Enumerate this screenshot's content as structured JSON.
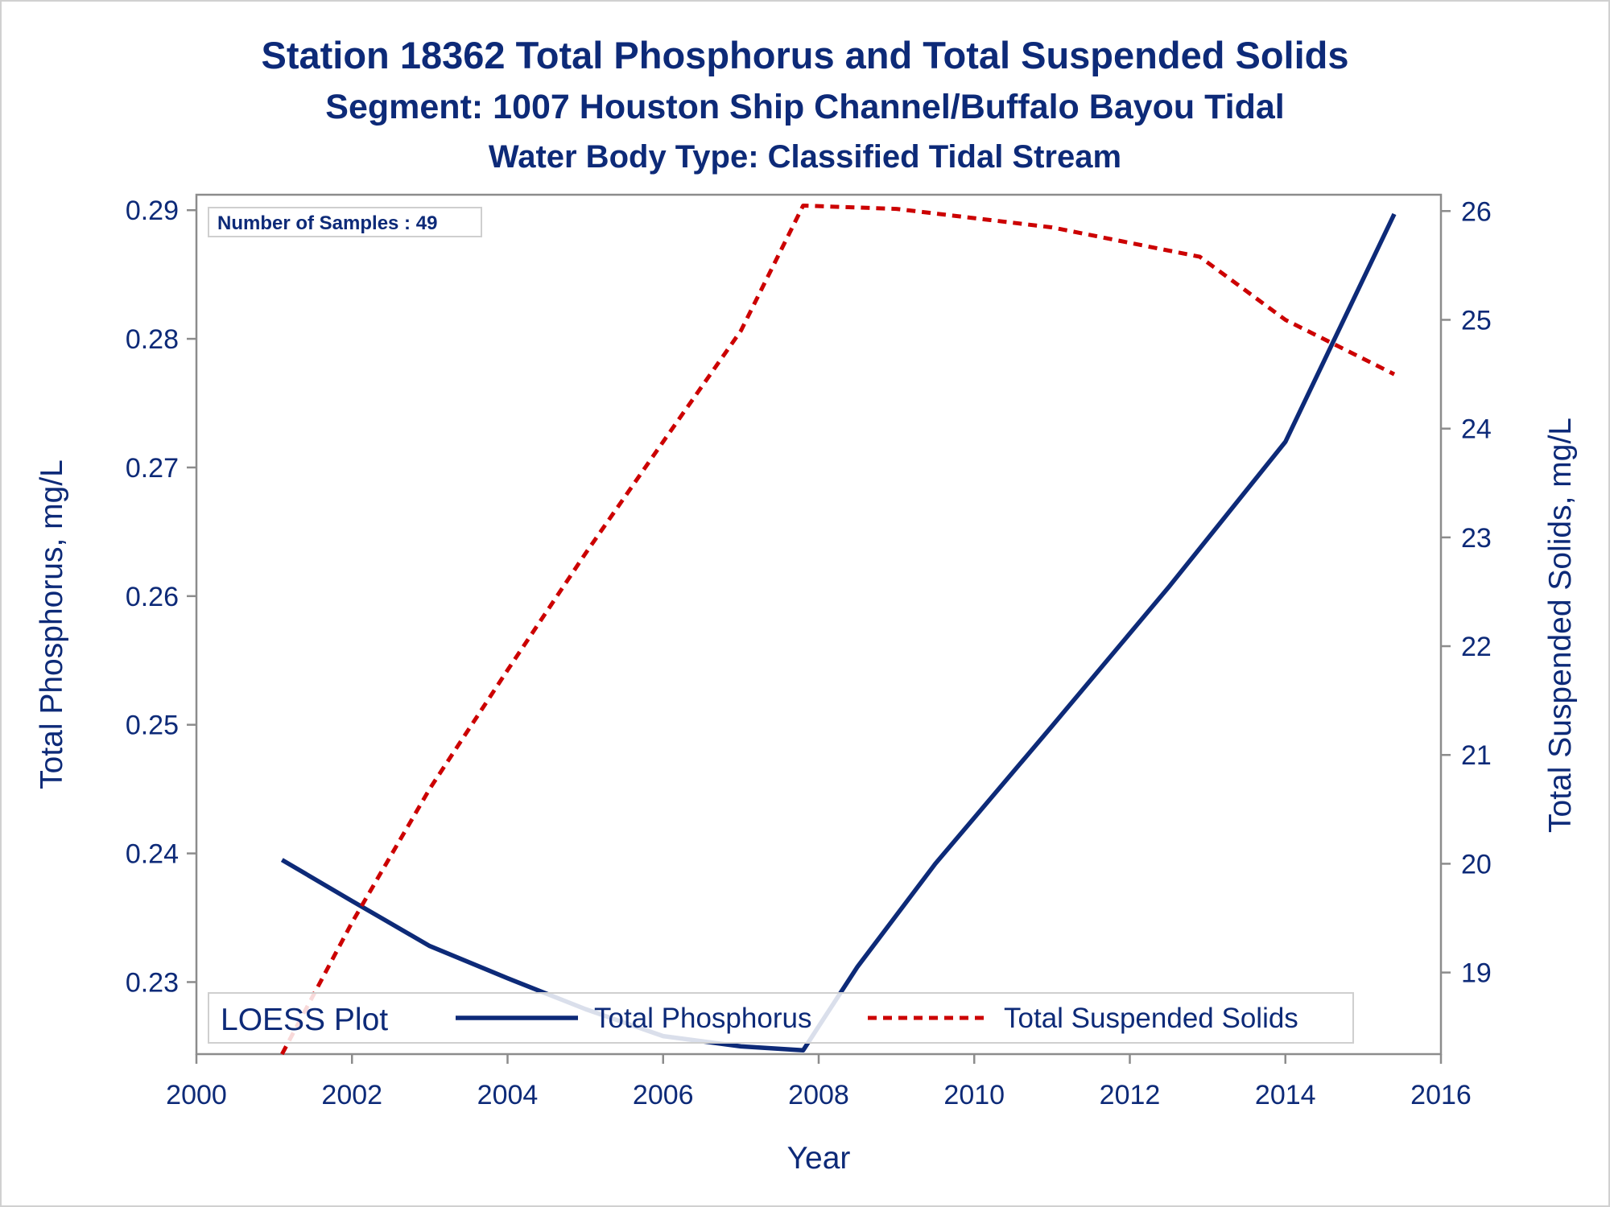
{
  "title": {
    "line1": "Station 18362  Total Phosphorus and Total Suspended Solids",
    "line2": "Segment: 1007  Houston Ship Channel/Buffalo Bayou Tidal",
    "line3": "Water Body Type: Classified Tidal Stream"
  },
  "inset": {
    "label": "Number of Samples : 49"
  },
  "legend": {
    "title": "LOESS Plot",
    "items": [
      "Total Phosphorus",
      "Total Suspended Solids"
    ]
  },
  "colors": {
    "phosphorus": "#0d2a78",
    "solids": "#cc0000",
    "text": "#0d2a78",
    "axis": "#8c8c8c"
  },
  "chart_data": {
    "type": "line",
    "xlabel": "Year",
    "ylabel": "Total Phosphorus, mg/L",
    "y2label": "Total Suspended Solids, mg/L",
    "xlim": [
      2000,
      2016
    ],
    "ylim": [
      0.2244,
      0.2912
    ],
    "y2lim": [
      18.25,
      26.15
    ],
    "xticks": [
      2000,
      2002,
      2004,
      2006,
      2008,
      2010,
      2012,
      2014,
      2016
    ],
    "yticks": [
      0.23,
      0.24,
      0.25,
      0.26,
      0.27,
      0.28,
      0.29
    ],
    "y2ticks": [
      19,
      20,
      21,
      22,
      23,
      24,
      25,
      26
    ],
    "grid": false,
    "legend_position": "bottom-inside",
    "series": [
      {
        "name": "Total Phosphorus",
        "axis": "left",
        "style": "solid",
        "x": [
          2001.1,
          2002,
          2003,
          2004,
          2005,
          2006,
          2007,
          2007.8,
          2008.5,
          2009.5,
          2011,
          2012.5,
          2014,
          2015.4
        ],
        "y": [
          0.2395,
          0.2363,
          0.2328,
          0.2303,
          0.2279,
          0.2258,
          0.225,
          0.2247,
          0.2312,
          0.2392,
          0.2499,
          0.2607,
          0.272,
          0.2897
        ]
      },
      {
        "name": "Total Suspended Solids",
        "axis": "right",
        "style": "dashed",
        "x": [
          2001.1,
          2002,
          2003,
          2004,
          2005,
          2006,
          2007,
          2007.8,
          2009,
          2011,
          2012.9,
          2014,
          2015.4
        ],
        "y": [
          18.25,
          19.46,
          20.69,
          21.78,
          22.85,
          23.88,
          24.9,
          26.05,
          26.02,
          25.85,
          25.58,
          25.0,
          24.5
        ]
      }
    ]
  }
}
